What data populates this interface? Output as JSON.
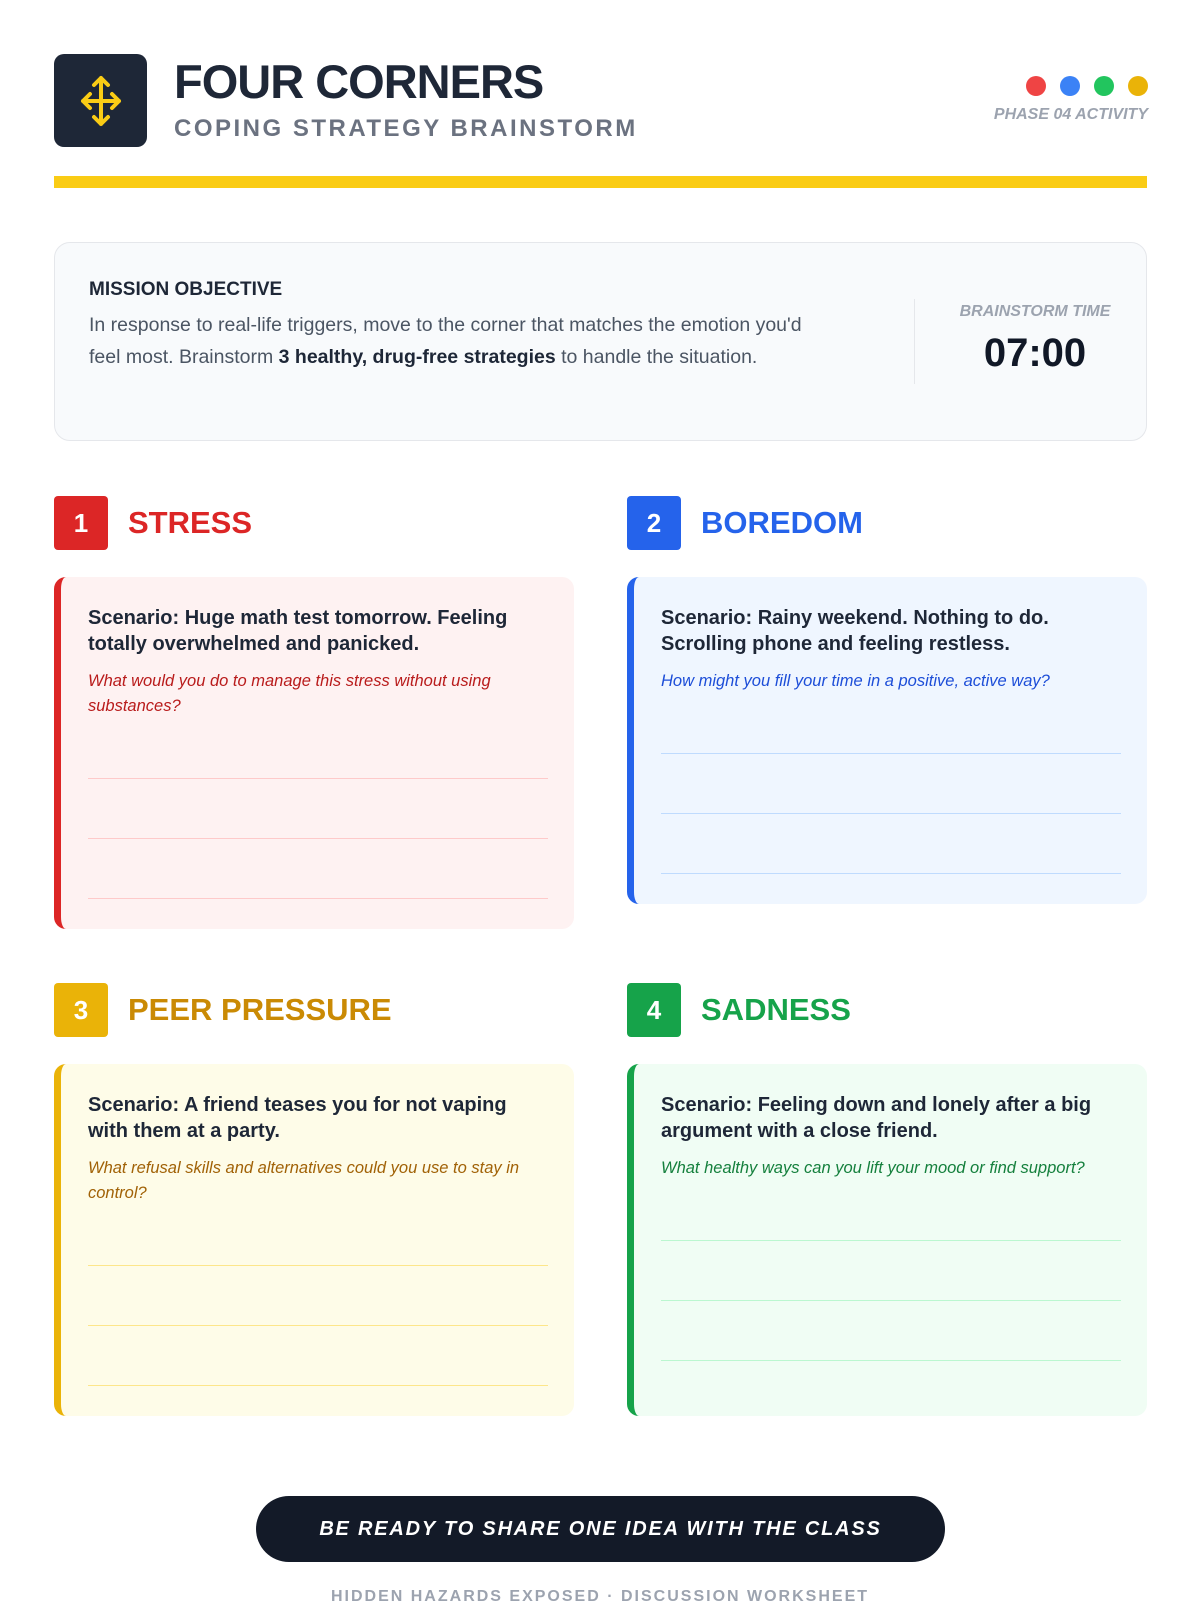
{
  "header": {
    "title": "FOUR CORNERS",
    "subtitle": "COPING STRATEGY BRAINSTORM",
    "phase": "PHASE 04 ACTIVITY",
    "icon": "move-arrows-icon",
    "dot_colors": [
      "#ef4444",
      "#3b82f6",
      "#22c55e",
      "#eab308"
    ],
    "accent": "#facc15"
  },
  "mission": {
    "heading": "MISSION OBJECTIVE",
    "text_before": "In response to real-life triggers, move to the corner that matches the emotion you'd feel most. Brainstorm ",
    "text_bold": "3 healthy, drug-free strategies",
    "text_after": " to handle the situation.",
    "timer_label": "BRAINSTORM TIME",
    "timer_value": "07:00"
  },
  "corners": [
    {
      "number": "1",
      "title": "STRESS",
      "scenario": "Scenario: Huge math test tomorrow. Feeling totally overwhelmed and panicked.",
      "question": "What would you do to manage this stress without using substances?",
      "color": "#dc2626"
    },
    {
      "number": "2",
      "title": "BOREDOM",
      "scenario": "Scenario: Rainy weekend. Nothing to do. Scrolling phone and feeling restless.",
      "question": "How might you fill your time in a positive, active way?",
      "color": "#2563eb"
    },
    {
      "number": "3",
      "title": "PEER PRESSURE",
      "scenario": "Scenario: A friend teases you for not vaping with them at a party.",
      "question": "What refusal skills and alternatives could you use to stay in control?",
      "color": "#ca8a04"
    },
    {
      "number": "4",
      "title": "SADNESS",
      "scenario": "Scenario: Feeling down and lonely after a big argument with a close friend.",
      "question": "What healthy ways can you lift your mood or find support?",
      "color": "#16a34a"
    }
  ],
  "cta": "BE READY TO SHARE ONE IDEA WITH THE CLASS",
  "footer": "HIDDEN HAZARDS EXPOSED · DISCUSSION WORKSHEET"
}
